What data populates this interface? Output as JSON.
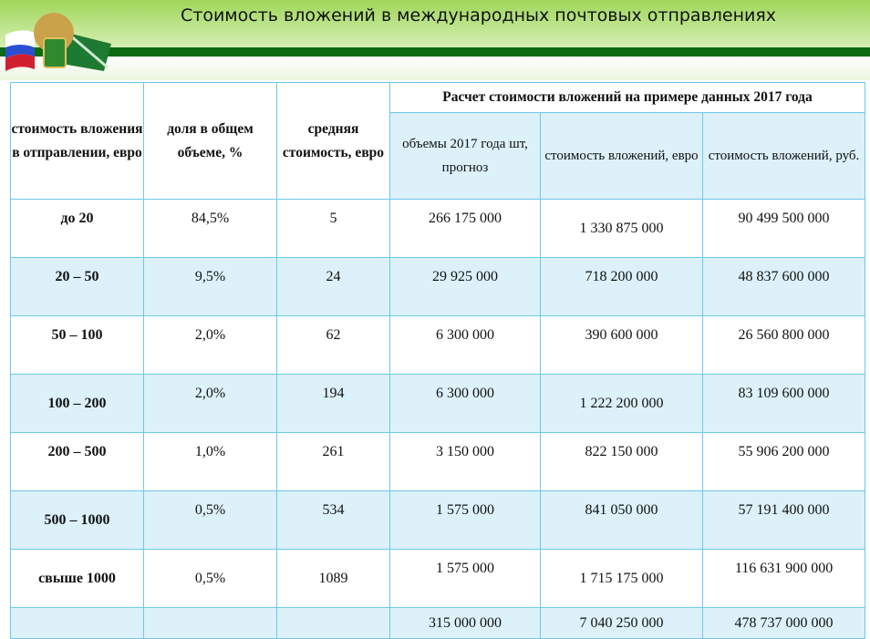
{
  "title": "Стоимость вложений в международных почтовых отправлениях",
  "header": {
    "col0": "стоимость вложения в отправлении, евро",
    "col1": "доля в общем объеме, %",
    "col2": "средняя стоимость, евро",
    "group": "Расчет стоимости вложений на примере данных 2017 года",
    "col3": "объемы 2017 года шт, прогноз",
    "col4": "стоимость вложений, евро",
    "col5": "стоимость вложений, руб."
  },
  "rows": [
    {
      "range": "до 20",
      "share": "84,5%",
      "avg": "5",
      "volume": "266 175 000",
      "eur": "1 330 875 000",
      "rub": "90 499 500 000"
    },
    {
      "range": "20 – 50",
      "share": "9,5%",
      "avg": "24",
      "volume": "29 925 000",
      "eur": "718 200 000",
      "rub": "48 837 600 000"
    },
    {
      "range": "50 – 100",
      "share": "2,0%",
      "avg": "62",
      "volume": "6 300 000",
      "eur": "390 600 000",
      "rub": "26 560 800 000"
    },
    {
      "range": "100 – 200",
      "share": "2,0%",
      "avg": "194",
      "volume": "6 300 000",
      "eur": "1 222 200 000",
      "rub": "83 109 600 000"
    },
    {
      "range": "200 – 500",
      "share": "1,0%",
      "avg": "261",
      "volume": "3 150 000",
      "eur": "822 150 000",
      "rub": "55 906 200 000"
    },
    {
      "range": "500 – 1000",
      "share": "0,5%",
      "avg": "534",
      "volume": "1 575 000",
      "eur": "841 050 000",
      "rub": "57 191 400 000"
    },
    {
      "range": "свыше 1000",
      "share": "0,5%",
      "avg": "1089",
      "volume": "1 575 000",
      "eur": "1 715 175 000",
      "rub": "116 631 900 000"
    }
  ],
  "total": {
    "volume": "315 000 000",
    "eur": "7 040 250 000",
    "rub": "478 737 000 000"
  }
}
